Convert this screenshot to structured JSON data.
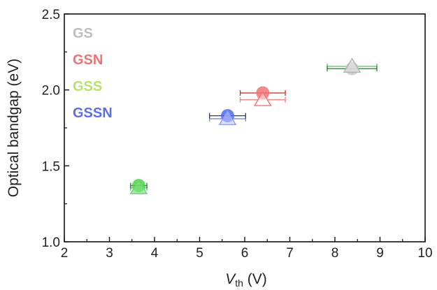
{
  "chart_data": {
    "type": "scatter",
    "xlabel_main": "V",
    "xlabel_sub": "th",
    "xlabel_unit": " (V)",
    "ylabel": "Optical bandgap (eV)",
    "xlim": [
      2,
      10
    ],
    "ylim": [
      1.0,
      2.5
    ],
    "xticks": [
      "2",
      "3",
      "4",
      "5",
      "6",
      "7",
      "8",
      "9",
      "10"
    ],
    "yticks": [
      "1.0",
      "1.5",
      "2.0",
      "2.5"
    ],
    "grid": false,
    "legend_position": "top-left",
    "series": [
      {
        "name": "GS",
        "color": "#bdbdbd",
        "circle": {
          "x": 8.38,
          "y": 2.14,
          "xerr": 0.55
        },
        "triangle": {
          "x": 8.38,
          "y": 2.155,
          "xerr": 0.55
        }
      },
      {
        "name": "GSN",
        "color": "#f07373",
        "circle": {
          "x": 6.4,
          "y": 1.98,
          "xerr": 0.5
        },
        "triangle": {
          "x": 6.4,
          "y": 1.935,
          "xerr": 0.5
        }
      },
      {
        "name": "GSS",
        "color": "#b4e36a",
        "circle": {
          "x": 3.65,
          "y": 1.37,
          "xerr": 0.18
        },
        "triangle": {
          "x": 3.65,
          "y": 1.355,
          "xerr": 0.18
        }
      },
      {
        "name": "GSSN",
        "color": "#5a6ff0",
        "circle": {
          "x": 5.62,
          "y": 1.83,
          "xerr": 0.4
        },
        "triangle": {
          "x": 5.62,
          "y": 1.81,
          "xerr": 0.4
        }
      }
    ],
    "marker_styles": {
      "GS": {
        "circle_fill": "#c8c8c8",
        "triangle_fill": "#ececec",
        "triangle_stroke": "#b0b0b0",
        "err_circle": "#2e7d32",
        "err_triangle": "#66bb6a"
      },
      "GSN": {
        "circle_fill": "#f07373",
        "triangle_fill": "#ffffff",
        "triangle_stroke": "#f07373",
        "err_circle": "#c62828",
        "err_triangle": "#f08080"
      },
      "GSS": {
        "circle_fill": "#3ddc3d",
        "triangle_fill": "#9ee59e",
        "triangle_stroke": "#7acc7a",
        "err_circle": "#2e7d32",
        "err_triangle": "#66bb6a"
      },
      "GSSN": {
        "circle_fill": "#4d6bf5",
        "triangle_fill": "#d6defc",
        "triangle_stroke": "#8ea0f0",
        "err_circle": "#283593",
        "err_triangle": "#7986cb"
      }
    }
  }
}
